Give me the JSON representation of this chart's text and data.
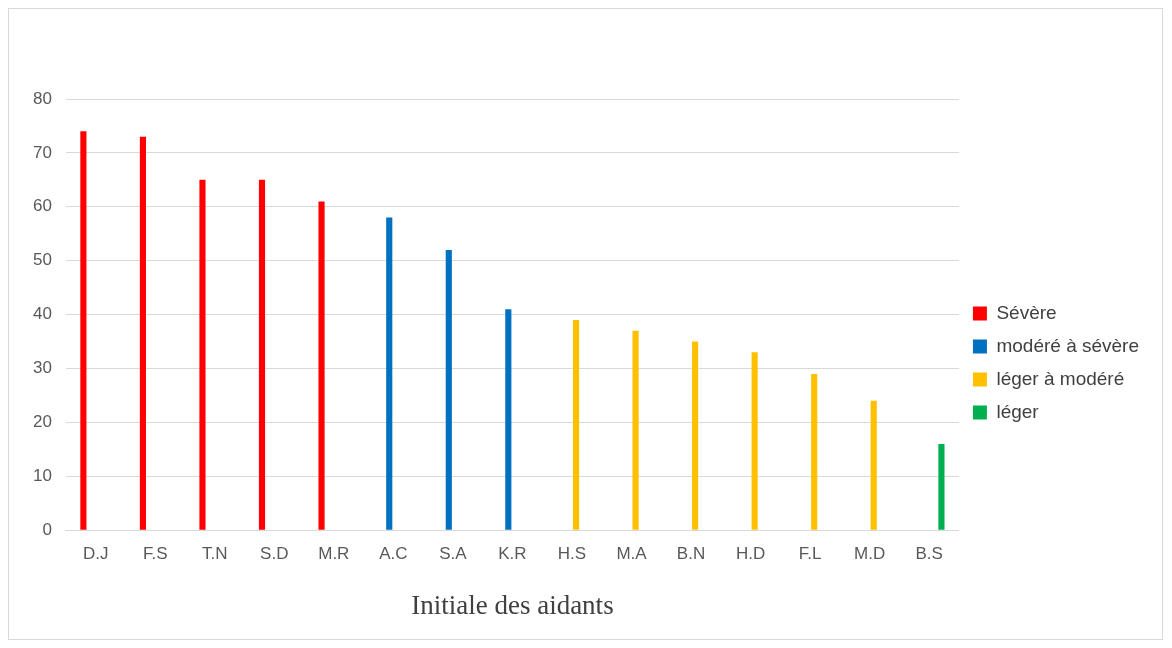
{
  "chart_data": {
    "type": "bar",
    "xlabel": "Initiale des aidants",
    "categories": [
      "D.J",
      "F.S",
      "T.N",
      "S.D",
      "M.R",
      "A.C",
      "S.A",
      "K.R",
      "H.S",
      "M.A",
      "B.N",
      "H.D",
      "F.L",
      "M.D",
      "B.S"
    ],
    "series": [
      {
        "name": "Sévère",
        "color": "#ff0000",
        "values": [
          74,
          73,
          65,
          65,
          61,
          null,
          null,
          null,
          null,
          null,
          null,
          null,
          null,
          null,
          null
        ]
      },
      {
        "name": "modéré à sévère",
        "color": "#0070c0",
        "values": [
          null,
          null,
          null,
          null,
          null,
          58,
          52,
          41,
          null,
          null,
          null,
          null,
          null,
          null,
          null
        ]
      },
      {
        "name": "léger à modéré",
        "color": "#ffc000",
        "values": [
          null,
          null,
          null,
          null,
          null,
          null,
          null,
          null,
          39,
          37,
          35,
          33,
          29,
          24,
          null
        ]
      },
      {
        "name": "léger",
        "color": "#00b050",
        "values": [
          null,
          null,
          null,
          null,
          null,
          null,
          null,
          null,
          null,
          null,
          null,
          null,
          null,
          null,
          16
        ]
      }
    ],
    "ylim": [
      0,
      80
    ],
    "yticks": [
      0,
      10,
      20,
      30,
      40,
      50,
      60,
      70,
      80
    ],
    "grid": "y",
    "legend": "right"
  }
}
